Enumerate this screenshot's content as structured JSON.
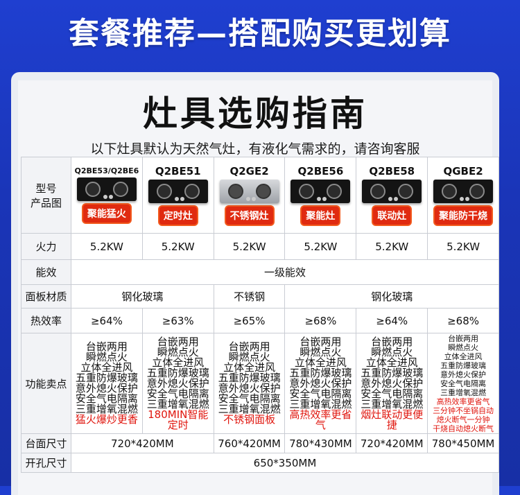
{
  "banner": "套餐推荐—搭配购买更划算",
  "title": "灶具选购指南",
  "subtitle": "以下灶具默认为天然气灶，有液化气需求的，请咨询客服",
  "labels": {
    "model": "型号",
    "product_image": "产品图",
    "power": "火力",
    "efficiency_class": "能效",
    "panel": "面板材质",
    "thermal": "热效率",
    "features": "功能卖点",
    "surface": "台面尺寸",
    "cutout": "开孔尺寸"
  },
  "models": [
    {
      "name": "Q2BE53/Q2BE6",
      "tag": "聚能猛火",
      "power": "5.2KW",
      "thermal": "≥64%",
      "features": [
        "台嵌两用",
        "瞬燃点火",
        "立体全进风",
        "五重防爆玻璃",
        "意外熄火保护",
        "安全气电隔离",
        "三重增氧混燃"
      ],
      "highlight": [
        "猛火爆炒更香"
      ]
    },
    {
      "name": "Q2BE51",
      "tag": "定时灶",
      "power": "5.2KW",
      "thermal": "≥63%",
      "features": [
        "台嵌两用",
        "瞬燃点火",
        "立体全进风",
        "五重防爆玻璃",
        "意外熄火保护",
        "安全气电隔离",
        "三重增氧混燃"
      ],
      "highlight": [
        "180MIN智能定时"
      ]
    },
    {
      "name": "Q2GE2",
      "tag": "不锈钢灶",
      "power": "5.2KW",
      "thermal": "≥65%",
      "features": [
        "台嵌两用",
        "瞬燃点火",
        "立体全进风",
        "五重防爆玻璃",
        "意外熄火保护",
        "安全气电隔离",
        "三重增氧混燃"
      ],
      "highlight": [
        "不锈钢面板"
      ]
    },
    {
      "name": "Q2BE56",
      "tag": "聚能灶",
      "power": "5.2KW",
      "thermal": "≥68%",
      "features": [
        "台嵌两用",
        "瞬燃点火",
        "立体全进风",
        "五重防爆玻璃",
        "意外熄火保护",
        "安全气电隔离",
        "三重增氧混燃"
      ],
      "highlight": [
        "高热效率更省气"
      ]
    },
    {
      "name": "Q2BE58",
      "tag": "联动灶",
      "power": "5.2KW",
      "thermal": "≥64%",
      "features": [
        "台嵌两用",
        "瞬燃点火",
        "立体全进风",
        "五重防爆玻璃",
        "意外熄火保护",
        "安全气电隔离",
        "三重增氧混燃"
      ],
      "highlight": [
        "烟灶联动更便捷"
      ]
    },
    {
      "name": "QGBE2",
      "tag": "聚能防干烧",
      "power": "5.2KW",
      "thermal": "≥68%",
      "features": [
        "台嵌两用",
        "瞬燃点火",
        "立体全进风",
        "五重防爆玻璃",
        "意外熄火保护",
        "安全气电隔离",
        "三重增氧混燃"
      ],
      "highlight": [
        "高热效率更省气",
        "三分钟不坐锅自动",
        "熄火断气一分钟",
        "干烧自动熄火断气"
      ]
    }
  ],
  "efficiency_class": "一级能效",
  "panel": {
    "glass_a": "钢化玻璃",
    "steel": "不锈钢",
    "glass_b": "钢化玻璃"
  },
  "surface": {
    "a": "720*420MM",
    "b": "760*420MM",
    "c": "780*430MM",
    "d": "720*420MM",
    "e": "780*450MM"
  },
  "cutout": "650*350MM",
  "colors": {
    "banner_bg": "#1f3fd0",
    "tag_red": "#e02a10",
    "highlight_red": "#e0160e"
  }
}
